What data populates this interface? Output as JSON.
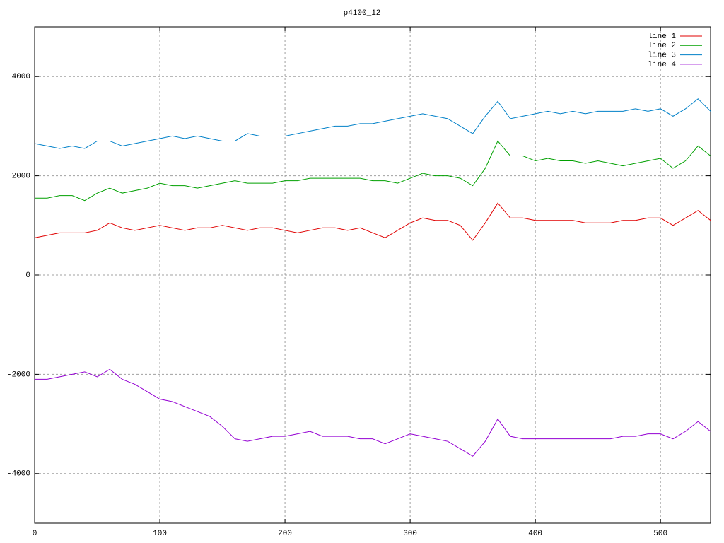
{
  "chart_data": {
    "type": "line",
    "title": "p4100_12",
    "x": [
      0,
      10,
      20,
      30,
      40,
      50,
      60,
      70,
      80,
      90,
      100,
      110,
      120,
      130,
      140,
      150,
      160,
      170,
      180,
      190,
      200,
      210,
      220,
      230,
      240,
      250,
      260,
      270,
      280,
      290,
      300,
      310,
      320,
      330,
      340,
      350,
      360,
      370,
      380,
      390,
      400,
      410,
      420,
      430,
      440,
      450,
      460,
      470,
      480,
      490,
      500,
      510,
      520,
      530,
      540
    ],
    "series": [
      {
        "name": "line 1",
        "color": "#e00000",
        "values": [
          750,
          800,
          850,
          850,
          850,
          900,
          1050,
          950,
          900,
          950,
          1000,
          950,
          900,
          950,
          950,
          1000,
          950,
          900,
          950,
          950,
          900,
          850,
          900,
          950,
          950,
          900,
          950,
          850,
          750,
          900,
          1050,
          1150,
          1100,
          1100,
          1000,
          700,
          1050,
          1450,
          1150,
          1150,
          1100,
          1100,
          1100,
          1100,
          1050,
          1050,
          1050,
          1100,
          1100,
          1150,
          1150,
          1000,
          1150,
          1300,
          1100
        ]
      },
      {
        "name": "line 2",
        "color": "#00a000",
        "values": [
          1550,
          1550,
          1600,
          1600,
          1500,
          1650,
          1750,
          1650,
          1700,
          1750,
          1850,
          1800,
          1800,
          1750,
          1800,
          1850,
          1900,
          1850,
          1850,
          1850,
          1900,
          1900,
          1950,
          1950,
          1950,
          1950,
          1950,
          1900,
          1900,
          1850,
          1950,
          2050,
          2000,
          2000,
          1950,
          1800,
          2150,
          2700,
          2400,
          2400,
          2300,
          2350,
          2300,
          2300,
          2250,
          2300,
          2250,
          2200,
          2250,
          2300,
          2350,
          2150,
          2300,
          2600,
          2400
        ]
      },
      {
        "name": "line 3",
        "color": "#0080c8",
        "values": [
          2650,
          2600,
          2550,
          2600,
          2550,
          2700,
          2700,
          2600,
          2650,
          2700,
          2750,
          2800,
          2750,
          2800,
          2750,
          2700,
          2700,
          2850,
          2800,
          2800,
          2800,
          2850,
          2900,
          2950,
          3000,
          3000,
          3050,
          3050,
          3100,
          3150,
          3200,
          3250,
          3200,
          3150,
          3000,
          2850,
          3200,
          3500,
          3150,
          3200,
          3250,
          3300,
          3250,
          3300,
          3250,
          3300,
          3300,
          3300,
          3350,
          3300,
          3350,
          3200,
          3350,
          3550,
          3300
        ]
      },
      {
        "name": "line 4",
        "color": "#9400d3",
        "values": [
          -2100,
          -2100,
          -2050,
          -2000,
          -1950,
          -2050,
          -1900,
          -2100,
          -2200,
          -2350,
          -2500,
          -2550,
          -2650,
          -2750,
          -2850,
          -3050,
          -3300,
          -3350,
          -3300,
          -3250,
          -3250,
          -3200,
          -3150,
          -3250,
          -3250,
          -3250,
          -3300,
          -3300,
          -3400,
          -3300,
          -3200,
          -3250,
          -3300,
          -3350,
          -3500,
          -3650,
          -3350,
          -2900,
          -3250,
          -3300,
          -3300,
          -3300,
          -3300,
          -3300,
          -3300,
          -3300,
          -3300,
          -3250,
          -3250,
          -3200,
          -3200,
          -3300,
          -3150,
          -2950,
          -3150
        ]
      }
    ],
    "xlim": [
      0,
      540
    ],
    "xticks": [
      0,
      100,
      200,
      300,
      400,
      500
    ],
    "ylim": [
      -5000,
      5000
    ],
    "yticks": [
      -4000,
      -2000,
      0,
      2000,
      4000
    ],
    "grid": true,
    "legend": "top-right"
  }
}
